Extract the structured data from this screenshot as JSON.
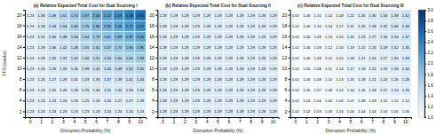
{
  "chart_data": [
    {
      "type": "heatmap",
      "title": "(a) Relative Expected Total Cost for Dual Sourcing I",
      "x_label": "Disruption Probability (%)",
      "y_label": "TTR (weeks)",
      "x": [
        0,
        1,
        2,
        3,
        4,
        5,
        6,
        7,
        8,
        9,
        10
      ],
      "y": [
        2,
        4,
        6,
        8,
        10,
        12,
        14,
        16,
        18,
        20
      ],
      "color": "Blues",
      "color_range": [
        1.0,
        3.0
      ],
      "data_labels": true,
      "values": [
        [
          1.23,
          1.23,
          1.23,
          1.23,
          1.23,
          1.23,
          1.24,
          1.24,
          1.24,
          1.24,
          1.24
        ],
        [
          1.23,
          1.23,
          1.24,
          1.24,
          1.25,
          1.25,
          1.26,
          1.26,
          1.27,
          1.27,
          1.28
        ],
        [
          1.23,
          1.24,
          1.25,
          1.26,
          1.28,
          1.29,
          1.3,
          1.31,
          1.32,
          1.33,
          1.34
        ],
        [
          1.23,
          1.25,
          1.27,
          1.29,
          1.31,
          1.33,
          1.35,
          1.37,
          1.39,
          1.41,
          1.43
        ],
        [
          1.23,
          1.26,
          1.29,
          1.33,
          1.36,
          1.39,
          1.42,
          1.45,
          1.49,
          1.52,
          1.55
        ],
        [
          1.23,
          1.28,
          1.32,
          1.37,
          1.42,
          1.46,
          1.51,
          1.55,
          1.6,
          1.64,
          1.69
        ],
        [
          1.23,
          1.29,
          1.36,
          1.42,
          1.48,
          1.55,
          1.61,
          1.67,
          1.73,
          1.8,
          1.86
        ],
        [
          1.23,
          1.31,
          1.4,
          1.48,
          1.56,
          1.64,
          1.73,
          1.81,
          1.89,
          1.97,
          2.05
        ],
        [
          1.23,
          1.33,
          1.44,
          1.54,
          1.65,
          1.75,
          1.86,
          1.96,
          2.06,
          2.17,
          2.27
        ],
        [
          1.23,
          1.36,
          1.49,
          1.61,
          1.74,
          1.87,
          2.0,
          2.12,
          2.25,
          2.38,
          2.5
        ]
      ],
      "value_labels": [
        [
          "1.23",
          "1.23",
          "1.23",
          "1.23",
          "1.23",
          "1.23",
          "1.24",
          "1.24",
          "1.24",
          "1.24",
          "1.24"
        ],
        [
          "1.23",
          "1.23",
          "1.24",
          "1.24",
          "1.25",
          "1.25",
          "1.26",
          "1.26",
          "1.27",
          "1.27",
          "1.28"
        ],
        [
          "1.23",
          "1.24",
          "1.25",
          "1.26",
          "1.28",
          "1.29",
          "1.30",
          "1.31",
          "1.32",
          "1.33",
          "1.34"
        ],
        [
          "1.23",
          "1.25",
          "1.27",
          "1.29",
          "1.31",
          "1.33",
          "1.35",
          "1.37",
          "1.39",
          "1.41",
          "1.43"
        ],
        [
          "1.23",
          "1.26",
          "1.29",
          "1.33",
          "1.36",
          "1.39",
          "1.42",
          "1.45",
          "1.49",
          "1.52",
          "1.55"
        ],
        [
          "1.23",
          "1.28",
          "1.32",
          "1.37",
          "1.42",
          "1.46",
          "1.51",
          "1.55",
          "1.60",
          "1.64",
          "1.69"
        ],
        [
          "1.23",
          "1.29",
          "1.36",
          "1.42",
          "1.48",
          "1.55",
          "1.61",
          "1.67",
          "1.73",
          "1.80",
          "1.86"
        ],
        [
          "1.23",
          "1.31",
          "1.40",
          "1.48",
          "1.56",
          "1.64",
          "1.73",
          "1.81",
          "1.89",
          "1.97",
          "2.05"
        ],
        [
          "1.23",
          "1.33",
          "1.44",
          "1.54",
          "1.65",
          "1.75",
          "1.86",
          "1.96",
          "2.06",
          "2.17",
          "2.27"
        ],
        [
          "1.23",
          "1.36",
          "1.49",
          "1.61",
          "1.74",
          "1.87",
          "2.00",
          "2.12",
          "2.25",
          "2.38",
          "2.50"
        ]
      ]
    },
    {
      "type": "heatmap",
      "title": "(b) Relative Expected Total Cost for Dual Sourcing II",
      "x_label": "Disruption Probability (%)",
      "x": [
        0,
        1,
        2,
        3,
        4,
        5,
        6,
        7,
        8,
        9,
        10
      ],
      "y": [
        2,
        4,
        6,
        8,
        10,
        12,
        14,
        16,
        18,
        20
      ],
      "color": "Blues",
      "color_range": [
        1.0,
        3.0
      ],
      "data_labels": true,
      "values": [
        [
          1.29,
          1.29,
          1.29,
          1.29,
          1.29,
          1.29,
          1.29,
          1.29,
          1.29,
          1.29,
          1.29
        ],
        [
          1.29,
          1.29,
          1.29,
          1.29,
          1.29,
          1.29,
          1.29,
          1.29,
          1.29,
          1.29,
          1.29
        ],
        [
          1.29,
          1.29,
          1.29,
          1.29,
          1.29,
          1.29,
          1.29,
          1.29,
          1.29,
          1.29,
          1.29
        ],
        [
          1.29,
          1.29,
          1.29,
          1.29,
          1.29,
          1.29,
          1.29,
          1.29,
          1.29,
          1.29,
          1.29
        ],
        [
          1.29,
          1.29,
          1.29,
          1.29,
          1.29,
          1.29,
          1.29,
          1.29,
          1.29,
          1.29,
          1.29
        ],
        [
          1.29,
          1.29,
          1.29,
          1.29,
          1.29,
          1.29,
          1.29,
          1.29,
          1.29,
          1.29,
          1.29
        ],
        [
          1.29,
          1.29,
          1.29,
          1.29,
          1.29,
          1.29,
          1.29,
          1.29,
          1.29,
          1.29,
          1.29
        ],
        [
          1.29,
          1.29,
          1.29,
          1.29,
          1.29,
          1.29,
          1.29,
          1.29,
          1.29,
          1.29,
          1.29
        ],
        [
          1.29,
          1.29,
          1.29,
          1.29,
          1.29,
          1.29,
          1.29,
          1.29,
          1.29,
          1.29,
          1.29
        ],
        [
          1.29,
          1.29,
          1.29,
          1.29,
          1.29,
          1.29,
          1.29,
          1.29,
          1.29,
          1.29,
          1.29
        ]
      ],
      "value_labels": [
        [
          "1.29",
          "1.29",
          "1.29",
          "1.29",
          "1.29",
          "1.29",
          "1.29",
          "1.29",
          "1.29",
          "1.29",
          "1.29"
        ],
        [
          "1.29",
          "1.29",
          "1.29",
          "1.29",
          "1.29",
          "1.29",
          "1.29",
          "1.29",
          "1.29",
          "1.29",
          "1.29"
        ],
        [
          "1.29",
          "1.29",
          "1.29",
          "1.29",
          "1.29",
          "1.29",
          "1.29",
          "1.29",
          "1.29",
          "1.29",
          "1.29"
        ],
        [
          "1.29",
          "1.29",
          "1.29",
          "1.29",
          "1.29",
          "1.29",
          "1.29",
          "1.29",
          "1.29",
          "1.29",
          "1.29"
        ],
        [
          "1.29",
          "1.29",
          "1.29",
          "1.29",
          "1.29",
          "1.29",
          "1.29",
          "1.29",
          "1.29",
          "1.29",
          "1.29"
        ],
        [
          "1.29",
          "1.29",
          "1.29",
          "1.29",
          "1.29",
          "1.29",
          "1.29",
          "1.29",
          "1.29",
          "1.29",
          "1.29"
        ],
        [
          "1.29",
          "1.29",
          "1.29",
          "1.29",
          "1.29",
          "1.29",
          "1.29",
          "1.29",
          "1.29",
          "1.29",
          "1.29"
        ],
        [
          "1.29",
          "1.29",
          "1.29",
          "1.29",
          "1.29",
          "1.29",
          "1.29",
          "1.29",
          "1.29",
          "1.29",
          "1.29"
        ],
        [
          "1.29",
          "1.29",
          "1.29",
          "1.29",
          "1.29",
          "1.29",
          "1.29",
          "1.29",
          "1.29",
          "1.29",
          "1.29"
        ],
        [
          "1.29",
          "1.29",
          "1.29",
          "1.29",
          "1.29",
          "1.29",
          "1.29",
          "1.29",
          "1.29",
          "1.29",
          "1.29"
        ]
      ]
    },
    {
      "type": "heatmap",
      "title": "(c) Relative Expected Total Cost for Dual Sourcing III",
      "x_label": "Disruption Probability (%)",
      "x": [
        0,
        1,
        2,
        3,
        4,
        5,
        6,
        7,
        8,
        9,
        10
      ],
      "y": [
        2,
        4,
        6,
        8,
        10,
        12,
        14,
        16,
        18,
        20
      ],
      "color": "Blues",
      "color_range": [
        1.0,
        3.0
      ],
      "color_ticks": [
        {
          "value": 1.0,
          "label": "1.0"
        },
        1.2,
        1.4,
        1.6,
        1.8,
        {
          "value": 2.0,
          "label": "2.0"
        },
        2.2,
        2.4,
        2.6,
        2.8,
        {
          "value": 3.0,
          "label": "3.0"
        }
      ],
      "data_labels": true,
      "values": [
        [
          1.02,
          1.02,
          1.03,
          1.03,
          1.03,
          1.04,
          1.04,
          1.04,
          1.04,
          1.05,
          1.05
        ],
        [
          1.02,
          1.03,
          1.04,
          1.05,
          1.06,
          1.07,
          1.08,
          1.09,
          1.1,
          1.11,
          1.12
        ],
        [
          1.02,
          1.05,
          1.07,
          1.09,
          1.12,
          1.14,
          1.16,
          1.18,
          1.21,
          1.23,
          1.25
        ],
        [
          1.02,
          1.05,
          1.08,
          1.1,
          1.13,
          1.15,
          1.18,
          1.21,
          1.23,
          1.26,
          1.28
        ],
        [
          1.02,
          1.05,
          1.08,
          1.11,
          1.14,
          1.17,
          1.19,
          1.22,
          1.25,
          1.28,
          1.3
        ],
        [
          1.02,
          1.06,
          1.09,
          1.12,
          1.15,
          1.18,
          1.21,
          1.24,
          1.27,
          1.3,
          1.33
        ],
        [
          1.02,
          1.06,
          1.09,
          1.12,
          1.16,
          1.19,
          1.22,
          1.25,
          1.29,
          1.32,
          1.35
        ],
        [
          1.02,
          1.06,
          1.09,
          1.13,
          1.16,
          1.2,
          1.23,
          1.27,
          1.3,
          1.34,
          1.37
        ],
        [
          1.02,
          1.06,
          1.1,
          1.14,
          1.17,
          1.21,
          1.25,
          1.28,
          1.32,
          1.36,
          1.39
        ],
        [
          1.02,
          1.06,
          1.1,
          1.14,
          1.18,
          1.22,
          1.26,
          1.3,
          1.34,
          1.38,
          1.42
        ]
      ],
      "value_labels": [
        [
          "1.02",
          "1.02",
          "1.03",
          "1.03",
          "1.03",
          "1.04",
          "1.04",
          "1.04",
          "1.04",
          "1.05",
          "1.05"
        ],
        [
          "1.02",
          "1.03",
          "1.04",
          "1.05",
          "1.06",
          "1.07",
          "1.08",
          "1.09",
          "1.10",
          "1.11",
          "1.12"
        ],
        [
          "1.02",
          "1.05",
          "1.07",
          "1.09",
          "1.12",
          "1.14",
          "1.16",
          "1.18",
          "1.21",
          "1.23",
          "1.25"
        ],
        [
          "1.02",
          "1.05",
          "1.08",
          "1.10",
          "1.13",
          "1.15",
          "1.18",
          "1.21",
          "1.23",
          "1.26",
          "1.28"
        ],
        [
          "1.02",
          "1.05",
          "1.08",
          "1.11",
          "1.14",
          "1.17",
          "1.19",
          "1.22",
          "1.25",
          "1.28",
          "1.30"
        ],
        [
          "1.02",
          "1.06",
          "1.09",
          "1.12",
          "1.15",
          "1.18",
          "1.21",
          "1.24",
          "1.27",
          "1.30",
          "1.33"
        ],
        [
          "1.02",
          "1.06",
          "1.09",
          "1.12",
          "1.16",
          "1.19",
          "1.22",
          "1.25",
          "1.29",
          "1.32",
          "1.35"
        ],
        [
          "1.02",
          "1.06",
          "1.09",
          "1.13",
          "1.16",
          "1.20",
          "1.23",
          "1.27",
          "1.30",
          "1.34",
          "1.37"
        ],
        [
          "1.02",
          "1.06",
          "1.10",
          "1.14",
          "1.17",
          "1.21",
          "1.25",
          "1.28",
          "1.32",
          "1.36",
          "1.39"
        ],
        [
          "1.02",
          "1.06",
          "1.10",
          "1.14",
          "1.18",
          "1.22",
          "1.26",
          "1.30",
          "1.34",
          "1.38",
          "1.42"
        ]
      ]
    }
  ]
}
